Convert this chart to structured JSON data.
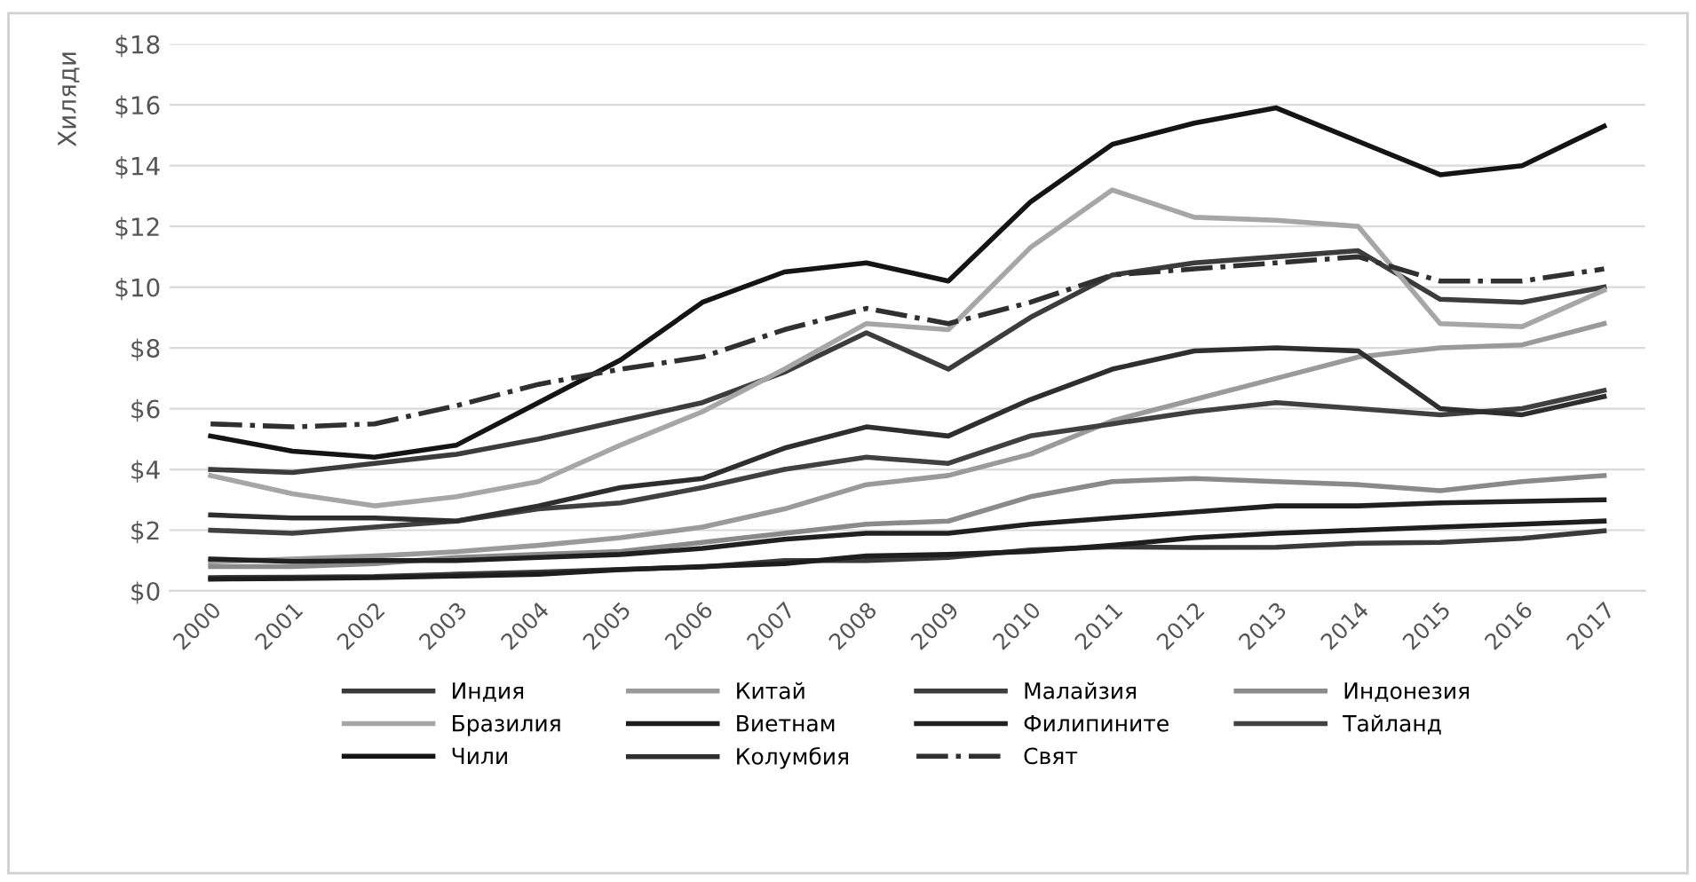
{
  "chart_data": {
    "type": "line",
    "ylabel": "Хиляди",
    "categories": [
      "2000",
      "2001",
      "2002",
      "2003",
      "2004",
      "2005",
      "2006",
      "2007",
      "2008",
      "2009",
      "2010",
      "2011",
      "2012",
      "2013",
      "2014",
      "2015",
      "2016",
      "2017"
    ],
    "ylim": [
      0,
      18
    ],
    "yticks": [
      {
        "value": 0,
        "label": "$0"
      },
      {
        "value": 2,
        "label": "$2"
      },
      {
        "value": 4,
        "label": "$4"
      },
      {
        "value": 6,
        "label": "$6"
      },
      {
        "value": 8,
        "label": "$8"
      },
      {
        "value": 10,
        "label": "$10"
      },
      {
        "value": 12,
        "label": "$12"
      },
      {
        "value": 14,
        "label": "$14"
      },
      {
        "value": 16,
        "label": "$16"
      },
      {
        "value": 18,
        "label": "$18"
      }
    ],
    "grid": "y",
    "legend": "bottom",
    "marker": "none",
    "series": [
      {
        "name": "Индия",
        "color": "#3a3a3a",
        "values": [
          0.44,
          0.45,
          0.47,
          0.55,
          0.62,
          0.71,
          0.79,
          1.0,
          1.0,
          1.1,
          1.35,
          1.45,
          1.43,
          1.44,
          1.57,
          1.6,
          1.73,
          1.98
        ]
      },
      {
        "name": "Китай",
        "color": "#9a9a9a",
        "values": [
          0.96,
          1.05,
          1.15,
          1.29,
          1.5,
          1.75,
          2.1,
          2.7,
          3.5,
          3.8,
          4.5,
          5.6,
          6.3,
          7.0,
          7.7,
          8.0,
          8.1,
          8.8
        ]
      },
      {
        "name": "Малайзия",
        "color": "#3c3c3c",
        "values": [
          4.0,
          3.9,
          4.2,
          4.5,
          5.0,
          5.6,
          6.2,
          7.2,
          8.5,
          7.3,
          9.0,
          10.4,
          10.8,
          11.0,
          11.2,
          9.6,
          9.5,
          10.0
        ]
      },
      {
        "name": "Индонезия",
        "color": "#8a8a8a",
        "values": [
          0.8,
          0.8,
          0.9,
          1.1,
          1.2,
          1.3,
          1.6,
          1.9,
          2.2,
          2.3,
          3.1,
          3.6,
          3.7,
          3.6,
          3.5,
          3.3,
          3.6,
          3.8
        ]
      },
      {
        "name": "Бразилия",
        "color": "#a6a6a6",
        "values": [
          3.8,
          3.2,
          2.8,
          3.1,
          3.6,
          4.8,
          5.9,
          7.3,
          8.8,
          8.6,
          11.3,
          13.2,
          12.3,
          12.2,
          12.0,
          8.8,
          8.7,
          9.9
        ]
      },
      {
        "name": "Виетнам",
        "color": "#1e1e1e",
        "values": [
          0.39,
          0.41,
          0.44,
          0.49,
          0.55,
          0.7,
          0.8,
          0.9,
          1.15,
          1.2,
          1.3,
          1.5,
          1.75,
          1.9,
          2.0,
          2.1,
          2.2,
          2.3
        ]
      },
      {
        "name": "Филипините",
        "color": "#202020",
        "values": [
          1.05,
          0.97,
          1.0,
          1.0,
          1.1,
          1.2,
          1.4,
          1.7,
          1.9,
          1.9,
          2.2,
          2.4,
          2.6,
          2.8,
          2.8,
          2.9,
          2.95,
          3.0
        ]
      },
      {
        "name": "Тайланд",
        "color": "#404040",
        "values": [
          2.0,
          1.9,
          2.1,
          2.3,
          2.7,
          2.9,
          3.4,
          4.0,
          4.4,
          4.2,
          5.1,
          5.5,
          5.9,
          6.2,
          6.0,
          5.8,
          6.0,
          6.6
        ]
      },
      {
        "name": "Чили",
        "color": "#141414",
        "values": [
          5.1,
          4.6,
          4.4,
          4.8,
          6.2,
          7.6,
          9.5,
          10.5,
          10.8,
          10.2,
          12.8,
          14.7,
          15.4,
          15.9,
          14.8,
          13.7,
          14.0,
          15.3
        ]
      },
      {
        "name": "Колумбия",
        "color": "#2e2e2e",
        "values": [
          2.5,
          2.4,
          2.4,
          2.3,
          2.8,
          3.4,
          3.7,
          4.7,
          5.4,
          5.1,
          6.3,
          7.3,
          7.9,
          8.0,
          7.9,
          6.0,
          5.8,
          6.4
        ]
      },
      {
        "name": "Свят",
        "color": "#303030",
        "line_style": "dashdot",
        "values": [
          5.5,
          5.4,
          5.5,
          6.1,
          6.8,
          7.3,
          7.7,
          8.6,
          9.3,
          8.8,
          9.5,
          10.4,
          10.6,
          10.8,
          11.0,
          10.2,
          10.2,
          10.6
        ]
      }
    ]
  }
}
